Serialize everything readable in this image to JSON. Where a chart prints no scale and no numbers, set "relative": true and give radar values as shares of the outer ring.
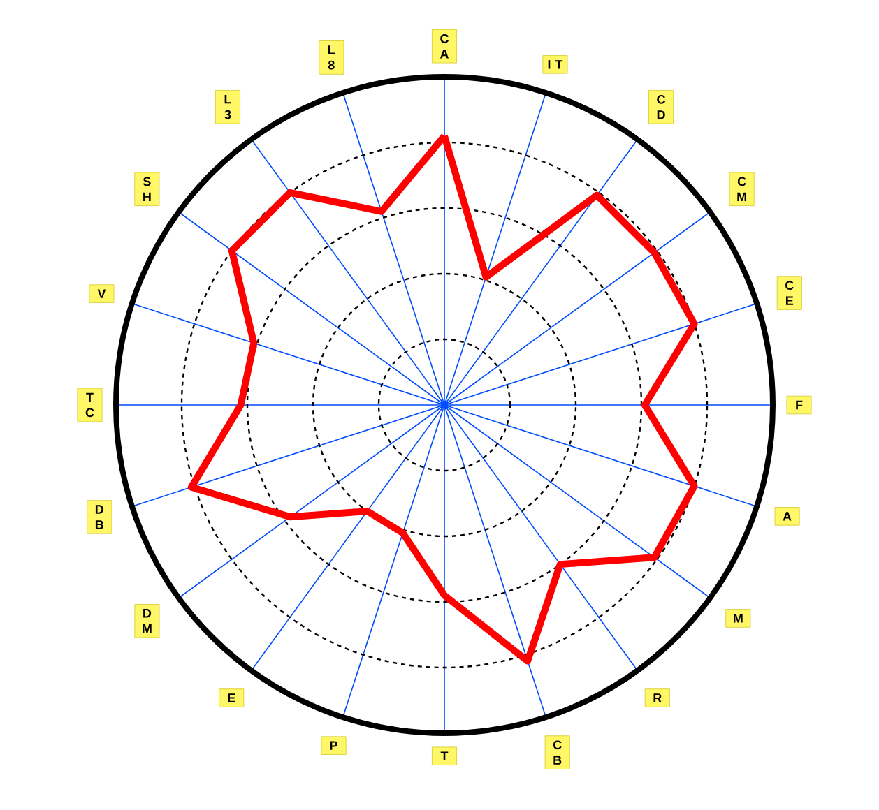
{
  "chart_data": {
    "type": "radar",
    "relative": true,
    "grid": true,
    "marker": "none",
    "line_style": "solid",
    "categories": [
      "C A",
      "I T",
      "C D",
      "C M",
      "C E",
      "F",
      "A",
      "M",
      "R",
      "C B",
      "T",
      "P",
      "E",
      "D M",
      "D B",
      "T C",
      "V",
      "S H",
      "L 3",
      "L 8"
    ],
    "series": [
      {
        "color": "#ff0000",
        "values": [
          0.82,
          0.41,
          0.79,
          0.79,
          0.8,
          0.61,
          0.8,
          0.79,
          0.6,
          0.82,
          0.58,
          0.41,
          0.4,
          0.58,
          0.81,
          0.62,
          0.61,
          0.8,
          0.8,
          0.62
        ]
      }
    ]
  }
}
